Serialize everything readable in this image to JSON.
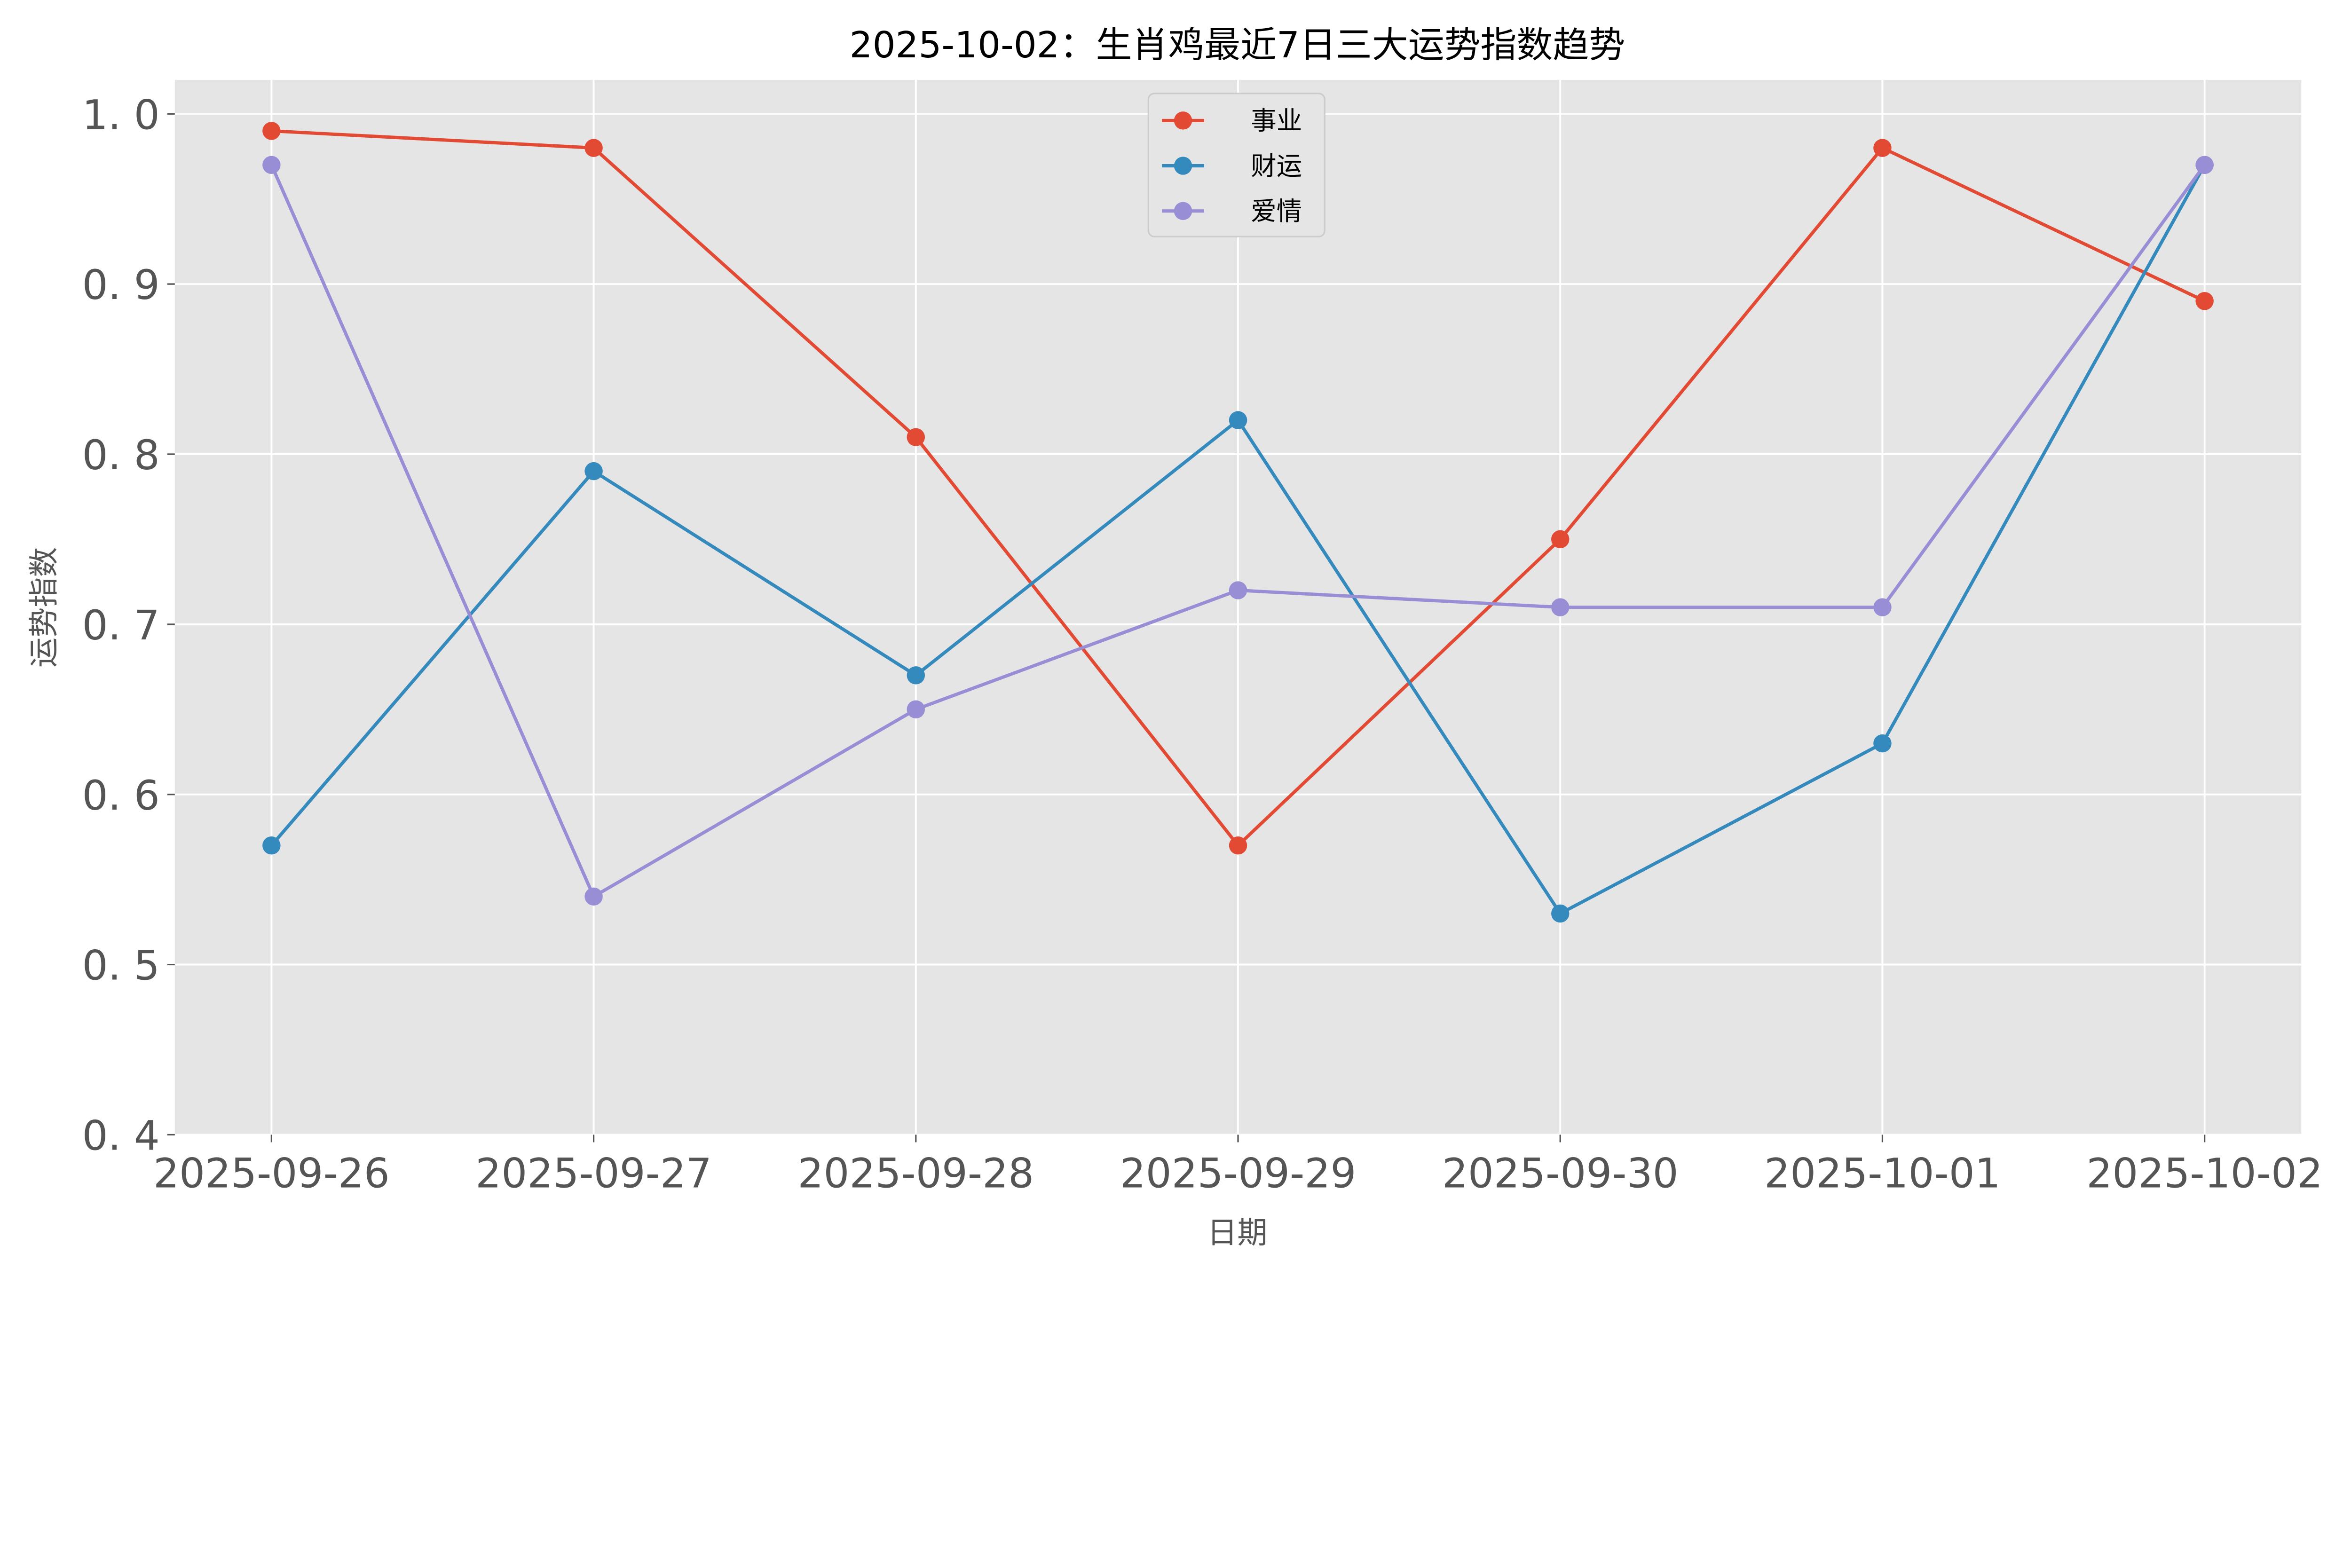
{
  "chart_data": {
    "type": "line",
    "title": "2025-10-02：生肖鸡最近7日三大运势指数趋势",
    "xlabel": "日期",
    "ylabel": "运势指数",
    "categories": [
      "2025-09-26",
      "2025-09-27",
      "2025-09-28",
      "2025-09-29",
      "2025-09-30",
      "2025-10-01",
      "2025-10-02"
    ],
    "ylim": [
      0.4,
      1.02
    ],
    "yticks": [
      "0.4",
      "0.5",
      "0.6",
      "0.7",
      "0.8",
      "0.9",
      "1.0"
    ],
    "grid": true,
    "legend_placement": "top-center",
    "background": "#e5e5e5",
    "series": [
      {
        "name": "事业",
        "color": "#e24a33",
        "marker": "circle",
        "values": [
          0.99,
          0.98,
          0.81,
          0.57,
          0.75,
          0.98,
          0.89
        ]
      },
      {
        "name": "财运",
        "color": "#348abd",
        "marker": "circle",
        "values": [
          0.57,
          0.79,
          0.67,
          0.82,
          0.53,
          0.63,
          0.97
        ]
      },
      {
        "name": "爱情",
        "color": "#988ed5",
        "marker": "circle",
        "values": [
          0.97,
          0.54,
          0.65,
          0.72,
          0.71,
          0.71,
          0.97
        ]
      }
    ]
  }
}
